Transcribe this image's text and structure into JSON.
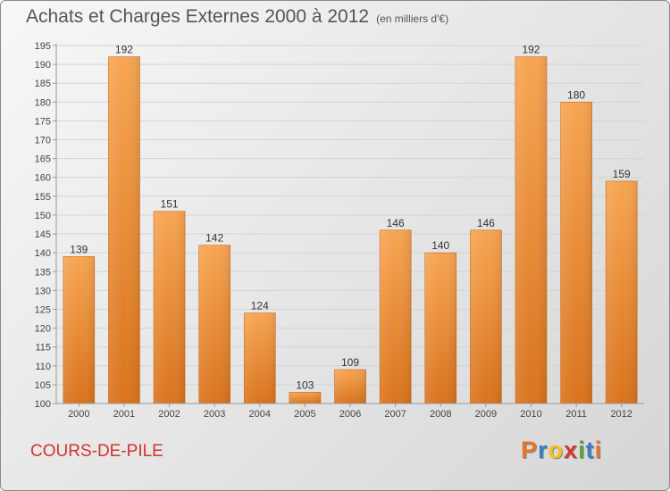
{
  "header": {
    "title": "Achats et Charges Externes 2000 à 2012",
    "unit": "(en milliers d'€)"
  },
  "footer": {
    "town": "COURS-DE-PILE",
    "logo": "Proxiti",
    "logo_colors": [
      "#e8742a",
      "#3a7fc2",
      "#f2c21b",
      "#d13b2f",
      "#5aa33a",
      "#3a7fc2",
      "#e8742a"
    ]
  },
  "chart_data": {
    "type": "bar",
    "categories": [
      "2000",
      "2001",
      "2002",
      "2003",
      "2004",
      "2005",
      "2006",
      "2007",
      "2008",
      "2009",
      "2010",
      "2011",
      "2012"
    ],
    "values": [
      139,
      192,
      151,
      142,
      124,
      103,
      109,
      146,
      140,
      146,
      192,
      180,
      159
    ],
    "ylim": [
      100,
      195
    ],
    "yticks": [
      100,
      105,
      110,
      115,
      120,
      125,
      130,
      135,
      140,
      145,
      150,
      155,
      160,
      165,
      170,
      175,
      180,
      185,
      190,
      195
    ],
    "bar_color": "#f08c2e",
    "grid": true,
    "xlabel": "",
    "ylabel": ""
  }
}
